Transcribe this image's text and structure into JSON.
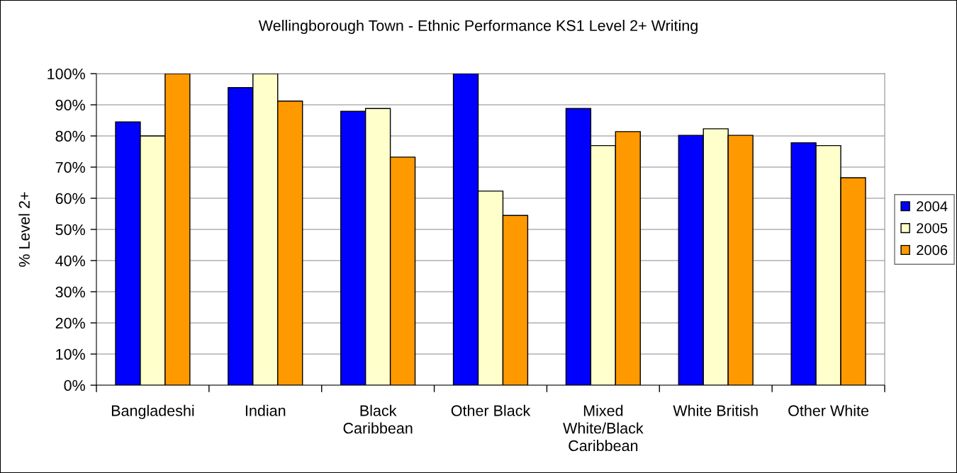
{
  "chart_data": {
    "type": "bar",
    "title": "Wellingborough Town - Ethnic Performance KS1 Level 2+ Writing",
    "ylabel": "% Level 2+",
    "categories": [
      "Bangladeshi",
      "Indian",
      "Black\nCaribbean",
      "Other Black",
      "Mixed\nWhite/Black\nCaribbean",
      "White British",
      "Other White"
    ],
    "series": [
      {
        "name": "2004",
        "color": "#0000ff",
        "values": [
          84.5,
          95.5,
          87.9,
          100,
          88.8,
          80.2,
          77.8
        ]
      },
      {
        "name": "2005",
        "color": "#ffffcc",
        "values": [
          80,
          100,
          88.8,
          62.3,
          76.9,
          82.3,
          76.9
        ]
      },
      {
        "name": "2006",
        "color": "#ff9900",
        "values": [
          100,
          91.2,
          73.2,
          54.5,
          81.4,
          80.2,
          66.6
        ]
      }
    ],
    "ylim": [
      0,
      100
    ],
    "yticks": [
      {
        "value": 0,
        "label": "0%"
      },
      {
        "value": 10,
        "label": "10%"
      },
      {
        "value": 20,
        "label": "20%"
      },
      {
        "value": 30,
        "label": "30%"
      },
      {
        "value": 40,
        "label": "40%"
      },
      {
        "value": 50,
        "label": "50%"
      },
      {
        "value": 60,
        "label": "60%"
      },
      {
        "value": 70,
        "label": "70%"
      },
      {
        "value": 80,
        "label": "80%"
      },
      {
        "value": 90,
        "label": "90%"
      },
      {
        "value": 100,
        "label": "100%"
      }
    ],
    "grid": "y",
    "legend": "right"
  }
}
